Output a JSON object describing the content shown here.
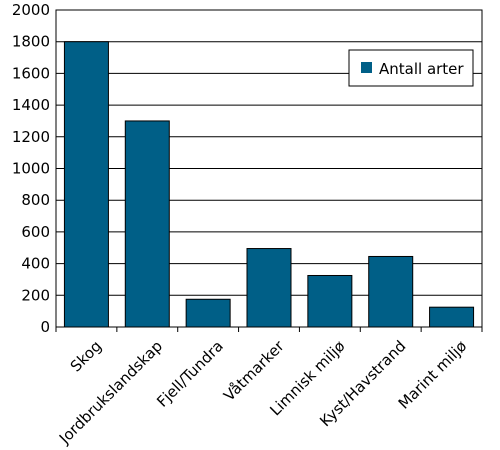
{
  "chart_data": {
    "type": "bar",
    "categories": [
      "Skog",
      "Jordbrukslandskap",
      "Fjell/Tundra",
      "Våtmarker",
      "Limnisk miljø",
      "Kyst/Havstrand",
      "Marint miljø"
    ],
    "series": [
      {
        "name": "Antall arter",
        "values": [
          1800,
          1300,
          175,
          495,
          325,
          445,
          125
        ]
      }
    ],
    "ylim": [
      0,
      2000
    ],
    "yticks": [
      0,
      200,
      400,
      600,
      800,
      1000,
      1200,
      1400,
      1600,
      1800,
      2000
    ],
    "grid": true,
    "legend_position": "top-right",
    "bar_color": "#005f87"
  }
}
